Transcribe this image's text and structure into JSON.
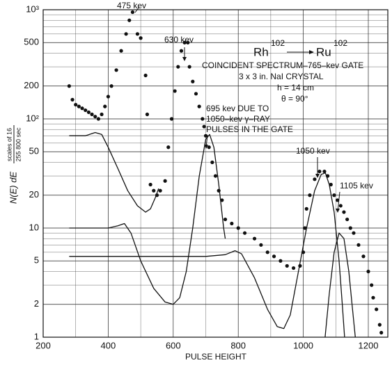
{
  "chart_data": {
    "type": "scatter",
    "x_label": "PULSE HEIGHT",
    "y_label": {
      "main": "N(E) dE",
      "numerator": "scales of 16",
      "denominator": "255 800 sec"
    },
    "xlim": [
      200,
      1260
    ],
    "xticks": [
      200,
      400,
      600,
      800,
      1000,
      1200
    ],
    "xminor": [
      300,
      500,
      700,
      900,
      1100
    ],
    "ylim": [
      1,
      1000
    ],
    "log_y": true,
    "yticks": [
      1,
      2,
      5,
      10,
      20,
      50,
      {
        "value": 100,
        "label": "10²"
      },
      200,
      500,
      {
        "value": 1000,
        "label": "10³"
      }
    ],
    "yminor": [
      3,
      4,
      6,
      7,
      8,
      9,
      30,
      40,
      60,
      70,
      80,
      90,
      300,
      400,
      600,
      700,
      800,
      900
    ],
    "grid": true,
    "annotations": [
      "475 kev",
      "630 kev",
      "Rh",
      "102",
      "Ru",
      "102",
      "COINCIDENT SPECTRUM–765–kev GATE",
      "3 x 3 in. NaI CRYSTAL",
      "h = 14 cm",
      "θ = 90°",
      "695 kev DUE TO",
      "1050–kev γ–RAY",
      "PULSES IN THE GATE",
      "1050 kev",
      "1105 kev"
    ],
    "series": [
      {
        "kind": "points",
        "color": "#111111",
        "x": [
          280,
          290,
          300,
          310,
          320,
          330,
          340,
          350,
          360,
          370,
          380,
          390,
          400,
          410,
          425,
          440,
          455,
          465,
          475,
          490,
          500,
          515,
          520,
          530,
          540,
          550,
          560,
          575,
          585,
          595,
          605,
          615,
          625,
          635,
          645,
          650,
          660,
          670,
          680,
          690,
          695,
          700,
          710,
          720,
          730,
          740,
          750,
          760,
          780,
          800,
          820,
          850,
          870,
          890,
          910,
          930,
          950,
          970,
          990,
          1000,
          1005,
          1010,
          1020,
          1035,
          1050,
          1065,
          1075,
          1085,
          1095,
          1105,
          1115,
          1125,
          1135,
          1145,
          1155,
          1170,
          1185,
          1200,
          1210,
          1215,
          1225,
          1235,
          1240
        ],
        "y": [
          200,
          150,
          135,
          130,
          125,
          120,
          115,
          110,
          105,
          100,
          110,
          130,
          160,
          200,
          280,
          420,
          600,
          800,
          950,
          600,
          550,
          250,
          110,
          25,
          22,
          20,
          22,
          27,
          55,
          100,
          180,
          300,
          420,
          500,
          500,
          300,
          220,
          170,
          130,
          100,
          85,
          70,
          55,
          40,
          30,
          22,
          18,
          12,
          11,
          10,
          9,
          8,
          7,
          6,
          5.5,
          5,
          4.5,
          4.3,
          4.5,
          6,
          10,
          15,
          20,
          28,
          33,
          33,
          30,
          25,
          20,
          18,
          16,
          14,
          12,
          10,
          9,
          7,
          5.5,
          4,
          3,
          2.3,
          1.8,
          1.3,
          1.1
        ]
      },
      {
        "kind": "curve",
        "color": "#111111",
        "x": [
          280,
          330,
          360,
          380,
          400,
          430,
          460,
          490,
          515,
          530,
          545,
          555
        ],
        "y": [
          70,
          70,
          75,
          72,
          55,
          35,
          22,
          16,
          14,
          15,
          19,
          23
        ]
      },
      {
        "kind": "curve",
        "color": "#111111",
        "x": [
          280,
          400,
          430,
          450,
          470,
          500,
          540,
          575,
          600,
          620,
          640,
          660,
          680,
          700,
          712,
          725,
          740,
          755,
          760
        ],
        "y": [
          10,
          10,
          10.5,
          11,
          9,
          5,
          2.8,
          2.1,
          2,
          2.3,
          4,
          10,
          30,
          65,
          72,
          55,
          25,
          10,
          8
        ]
      },
      {
        "kind": "curve",
        "color": "#111111",
        "x": [
          280,
          700,
          760,
          790,
          810,
          850,
          890,
          920,
          940,
          960,
          985,
          1010,
          1035,
          1055,
          1068,
          1080,
          1095,
          1110,
          1120,
          1127
        ],
        "y": [
          5.5,
          5.5,
          5.7,
          6.2,
          5.8,
          3.5,
          1.8,
          1.25,
          1.2,
          1.6,
          4,
          10,
          22,
          31,
          32,
          25,
          14,
          5,
          2,
          1
        ]
      },
      {
        "kind": "curve",
        "color": "#111111",
        "x": [
          1067,
          1080,
          1095,
          1110,
          1125,
          1140,
          1150,
          1160
        ],
        "y": [
          1,
          2.5,
          6,
          9,
          8,
          4,
          2,
          1
        ]
      }
    ]
  }
}
